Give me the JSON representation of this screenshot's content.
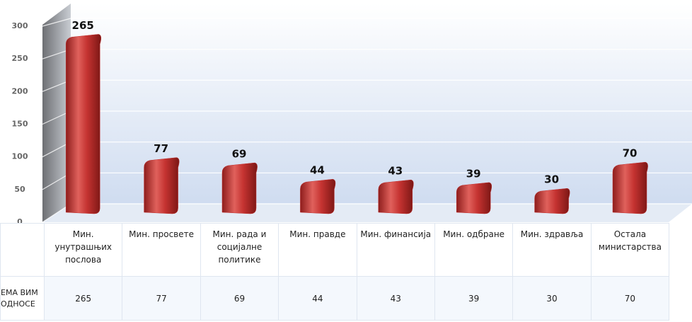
{
  "chart_data": {
    "type": "bar",
    "categories": [
      "Мин. унутрашњих послова",
      "Мин. просвете",
      "Мин. рада и социјалне политике",
      "Мин. правде",
      "Мин. финансија",
      "Мин. одбране",
      "Мин. здравља",
      "Остала министарства"
    ],
    "series": [
      {
        "name": "ЕМА ВИМ ОДНОСЕ",
        "color": "#c0302e",
        "values": [
          265,
          77,
          69,
          44,
          43,
          39,
          30,
          70
        ]
      }
    ],
    "ylim": [
      0,
      300
    ],
    "yticks": [
      0,
      50,
      100,
      150,
      200,
      250,
      300
    ],
    "grid": true
  }
}
